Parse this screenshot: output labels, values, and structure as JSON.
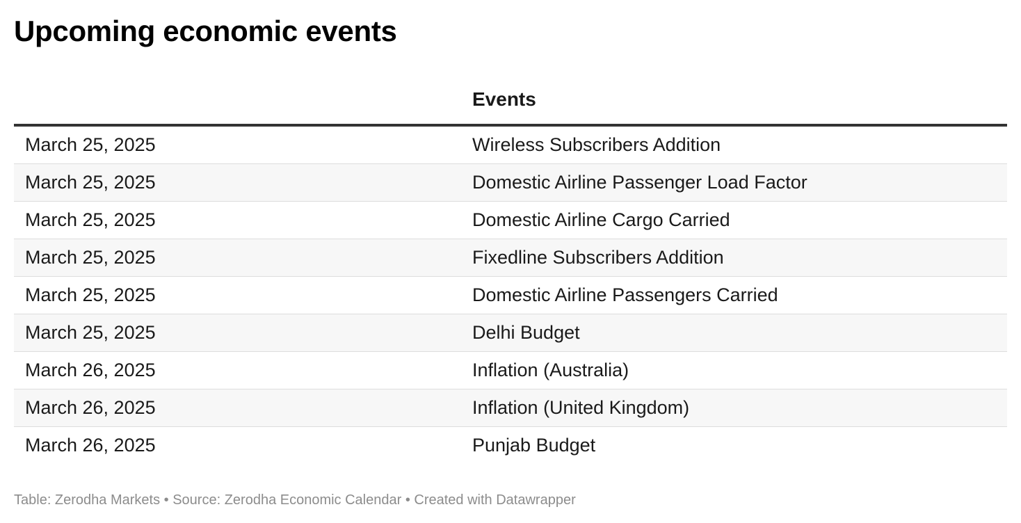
{
  "title": "Upcoming economic events",
  "table": {
    "columns": [
      "",
      "Events"
    ],
    "rows": [
      {
        "date": "March 25, 2025",
        "event": "Wireless Subscribers Addition"
      },
      {
        "date": "March 25, 2025",
        "event": "Domestic Airline Passenger Load Factor"
      },
      {
        "date": "March 25, 2025",
        "event": "Domestic Airline Cargo Carried"
      },
      {
        "date": "March 25, 2025",
        "event": "Fixedline Subscribers Addition"
      },
      {
        "date": "March 25, 2025",
        "event": "Domestic Airline Passengers Carried"
      },
      {
        "date": "March 25, 2025",
        "event": "Delhi Budget"
      },
      {
        "date": "March 26, 2025",
        "event": "Inflation (Australia)"
      },
      {
        "date": "March 26, 2025",
        "event": "Inflation (United Kingdom)"
      },
      {
        "date": "March 26, 2025",
        "event": "Punjab Budget"
      }
    ]
  },
  "footer": "Table: Zerodha Markets • Source: Zerodha Economic Calendar • Created with Datawrapper",
  "colors": {
    "header_rule": "#333333",
    "row_divider": "#dddddd",
    "stripe": "#f7f7f7",
    "footer_text": "#8c8c8c"
  }
}
